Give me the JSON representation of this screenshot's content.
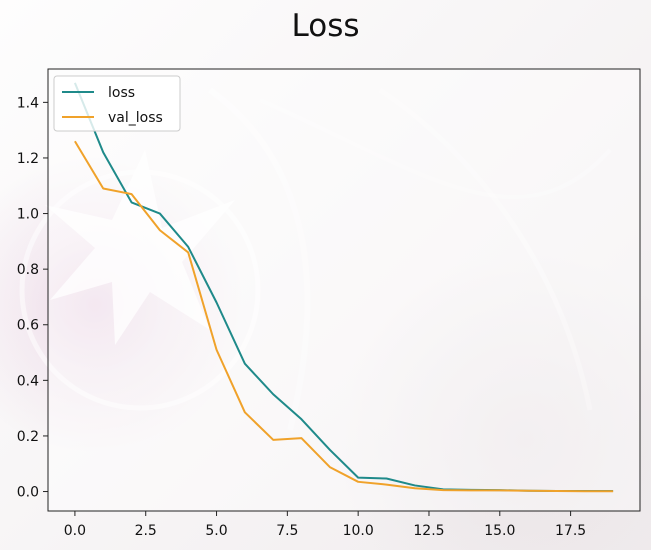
{
  "chart_data": {
    "type": "line",
    "title": "Loss",
    "xlabel": "",
    "ylabel": "",
    "xlim": [
      -0.95,
      19.95
    ],
    "ylim": [
      -0.07,
      1.52
    ],
    "x_ticks": [
      0.0,
      2.5,
      5.0,
      7.5,
      10.0,
      12.5,
      15.0,
      17.5
    ],
    "x_tick_labels": [
      "0.0",
      "2.5",
      "5.0",
      "7.5",
      "10.0",
      "12.5",
      "15.0",
      "17.5"
    ],
    "y_ticks": [
      0.0,
      0.2,
      0.4,
      0.6,
      0.8,
      1.0,
      1.2,
      1.4
    ],
    "y_tick_labels": [
      "0.0",
      "0.2",
      "0.4",
      "0.6",
      "0.8",
      "1.0",
      "1.2",
      "1.4"
    ],
    "grid": false,
    "legend_position": "upper-left",
    "x": [
      0,
      1,
      2,
      3,
      4,
      5,
      6,
      7,
      8,
      9,
      10,
      11,
      12,
      13,
      14,
      15,
      16,
      17,
      18,
      19
    ],
    "series": [
      {
        "name": "loss",
        "color": "#1f8a8a",
        "values": [
          1.47,
          1.22,
          1.04,
          1.0,
          0.88,
          0.68,
          0.46,
          0.35,
          0.26,
          0.15,
          0.05,
          0.047,
          0.022,
          0.008,
          0.006,
          0.005,
          0.003,
          0.002,
          0.002,
          0.002
        ]
      },
      {
        "name": "val_loss",
        "color": "#f0a22a",
        "values": [
          1.26,
          1.09,
          1.07,
          0.94,
          0.86,
          0.51,
          0.285,
          0.186,
          0.192,
          0.088,
          0.035,
          0.025,
          0.012,
          0.005,
          0.004,
          0.004,
          0.003,
          0.002,
          0.001,
          0.001
        ]
      }
    ]
  }
}
